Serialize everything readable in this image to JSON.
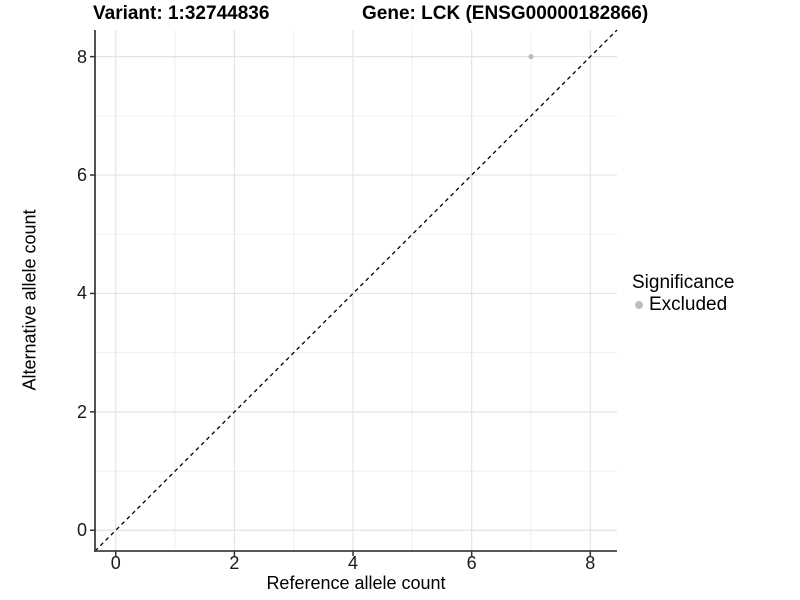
{
  "chart_data": {
    "type": "scatter",
    "title_left": "Variant: 1:32744836",
    "title_right": "Gene: LCK (ENSG00000182866)",
    "xlabel": "Reference allele count",
    "ylabel": "Alternative allele count",
    "xlim": [
      -0.35,
      8.45
    ],
    "ylim": [
      -0.35,
      8.45
    ],
    "x_major_ticks": [
      0,
      2,
      4,
      6,
      8
    ],
    "x_minor_gridlines": [
      1,
      3,
      5,
      7
    ],
    "y_major_ticks": [
      0,
      2,
      4,
      6,
      8
    ],
    "y_minor_gridlines": [
      1,
      3,
      5,
      7
    ],
    "grid": "on",
    "reference_line": {
      "type": "identity",
      "equation": "y = x",
      "style": "dashed",
      "color": "#000000"
    },
    "series": [
      {
        "name": "Excluded",
        "color": "#bdbdbd",
        "points": [
          {
            "x": 7,
            "y": 8
          }
        ]
      }
    ],
    "legend": {
      "title": "Significance",
      "position": "right",
      "items": [
        {
          "label": "Excluded",
          "color": "#bdbdbd",
          "marker": "circle"
        }
      ]
    }
  },
  "colors": {
    "background": "#ffffff",
    "grid_major": "#e3e3e3",
    "grid_minor": "#efefef",
    "axis_line": "#404040",
    "tick_mark": "#333333",
    "point": "#bdbdbd",
    "text": "#000000"
  }
}
